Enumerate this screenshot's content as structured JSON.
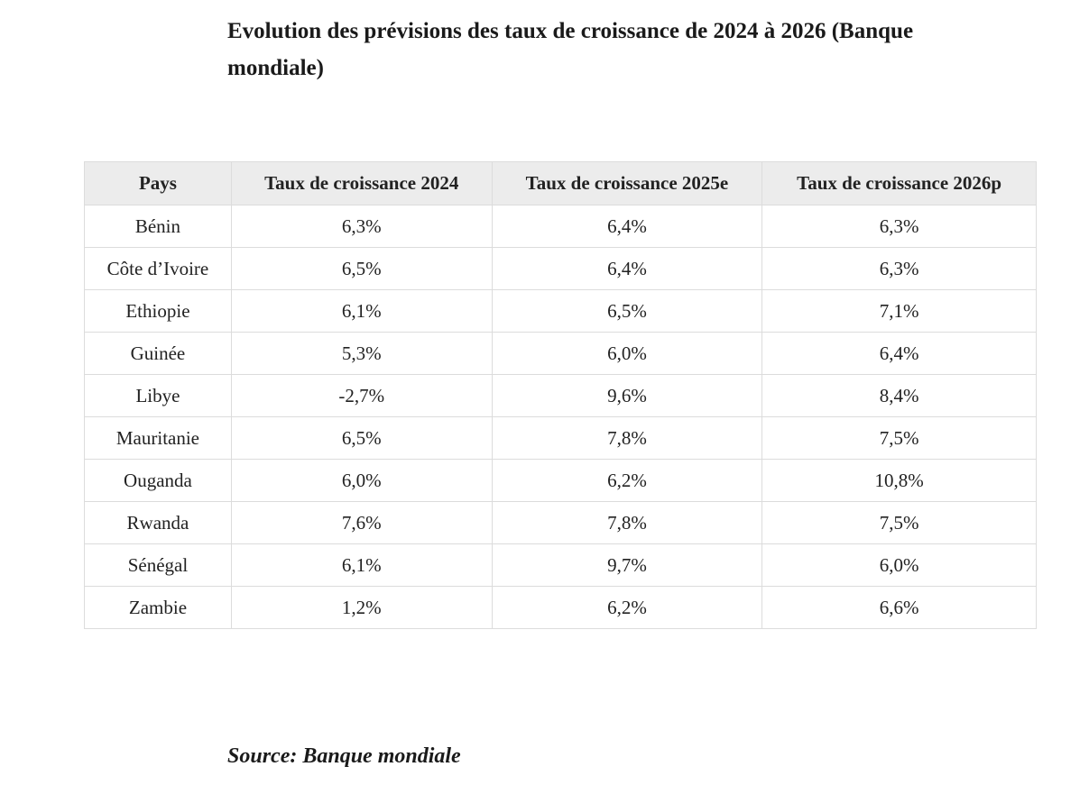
{
  "title": "Evolution des prévisions des taux de croissance de 2024 à 2026 (Banque mondiale)",
  "table": {
    "header": [
      "Pays",
      "Taux de croissance 2024",
      "Taux de croissance 2025e",
      "Taux de croissance 2026p"
    ],
    "rows": [
      [
        "Bénin",
        "6,3%",
        "6,4%",
        "6,3%"
      ],
      [
        "Côte d’Ivoire",
        "6,5%",
        "6,4%",
        "6,3%"
      ],
      [
        "Ethiopie",
        "6,1%",
        "6,5%",
        "7,1%"
      ],
      [
        "Guinée",
        "5,3%",
        "6,0%",
        "6,4%"
      ],
      [
        "Libye",
        "-2,7%",
        "9,6%",
        "8,4%"
      ],
      [
        "Mauritanie",
        "6,5%",
        "7,8%",
        "7,5%"
      ],
      [
        "Ouganda",
        "6,0%",
        "6,2%",
        "10,8%"
      ],
      [
        "Rwanda",
        "7,6%",
        "7,8%",
        "7,5%"
      ],
      [
        "Sénégal",
        "6,1%",
        "9,7%",
        "6,0%"
      ],
      [
        "Zambie",
        "1,2%",
        "6,2%",
        "6,6%"
      ]
    ]
  },
  "source": "Source: Banque mondiale"
}
